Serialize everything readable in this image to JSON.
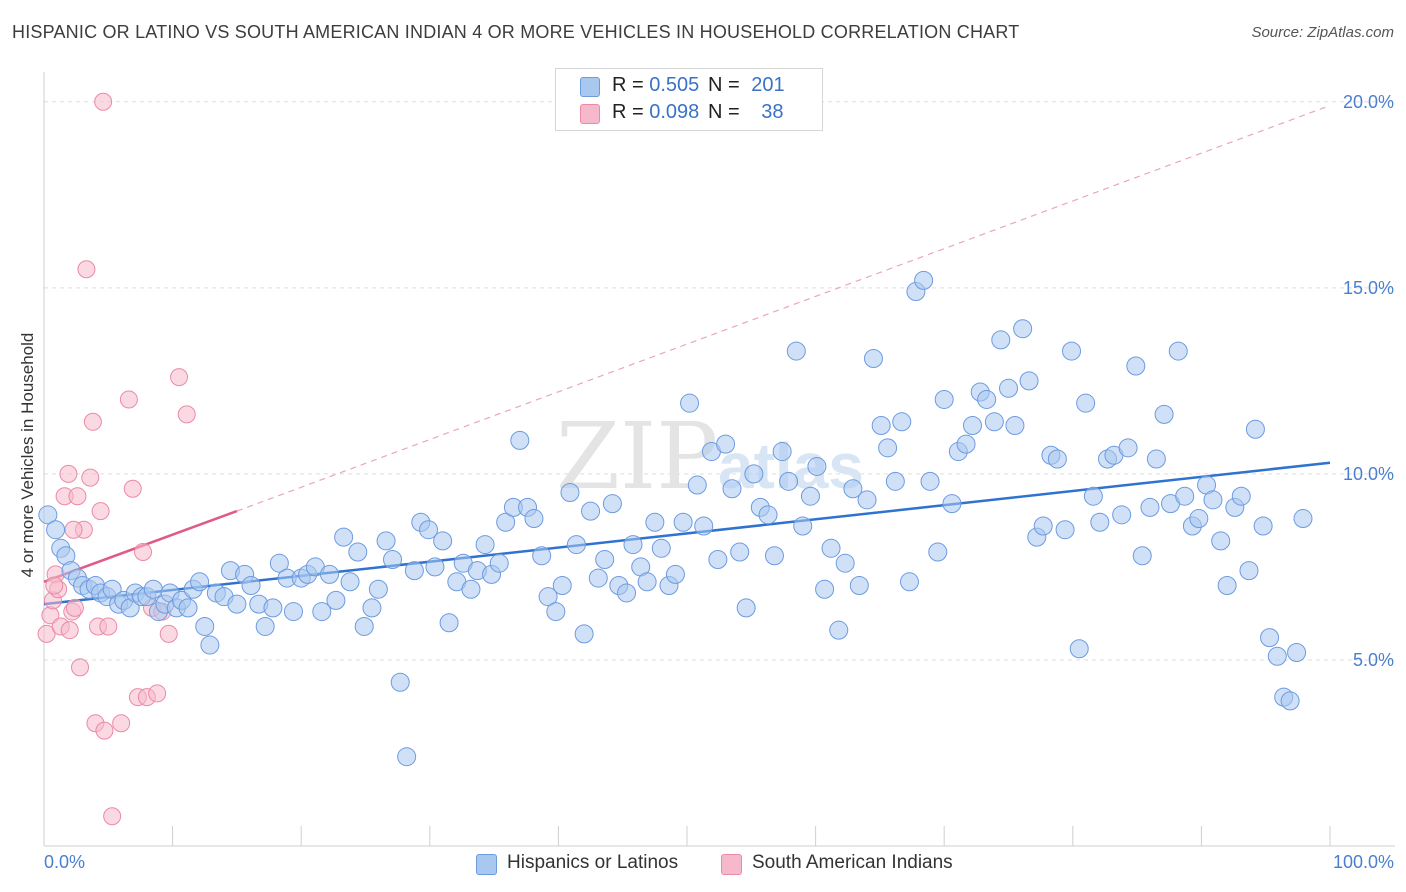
{
  "title": "HISPANIC OR LATINO VS SOUTH AMERICAN INDIAN 4 OR MORE VEHICLES IN HOUSEHOLD CORRELATION CHART",
  "source": "Source: ZipAtlas.com",
  "colors": {
    "blue_fill": "#a9c8f0",
    "blue_stroke": "#6d9be0",
    "blue_line": "#2f72d0",
    "pink_fill": "#f6b9cb",
    "pink_stroke": "#eb8aa8",
    "pink_line": "#e05a88",
    "tick_text": "#4a7fcf",
    "grid": "#dddddd"
  },
  "legend": {
    "rows": [
      {
        "r_label": "R = ",
        "r_value": "0.505",
        "n_label": "N = ",
        "n_value": "201"
      },
      {
        "r_label": "R = ",
        "r_value": "0.098",
        "n_label": "N = ",
        "n_value": "38"
      }
    ]
  },
  "bottom_legend": {
    "items": [
      "Hispanics or Latinos",
      "South American Indians"
    ]
  },
  "chart_data": {
    "type": "scatter",
    "ylabel": "4 or more Vehicles in Household",
    "xlim": [
      0,
      100
    ],
    "ylim": [
      0,
      20.8
    ],
    "y_ticks": [
      5,
      10,
      15,
      20
    ],
    "y_tick_labels": [
      "5.0%",
      "10.0%",
      "15.0%",
      "20.0%"
    ],
    "x_tick_labels": [
      "0.0%",
      "100.0%"
    ],
    "grid": "horizontal dashed",
    "watermark": "ZIPatlas",
    "series": [
      {
        "name": "Hispanics or Latinos",
        "trend": {
          "x0": 0,
          "y0": 6.5,
          "x1": 100,
          "y1": 10.3
        },
        "points": [
          [
            0.3,
            8.9
          ],
          [
            0.9,
            8.5
          ],
          [
            1.3,
            8.0
          ],
          [
            1.7,
            7.8
          ],
          [
            2.1,
            7.4
          ],
          [
            2.6,
            7.2
          ],
          [
            3.0,
            7.0
          ],
          [
            3.5,
            6.9
          ],
          [
            4.0,
            7.0
          ],
          [
            4.4,
            6.8
          ],
          [
            4.9,
            6.7
          ],
          [
            5.3,
            6.9
          ],
          [
            5.8,
            6.5
          ],
          [
            6.2,
            6.6
          ],
          [
            6.7,
            6.4
          ],
          [
            7.1,
            6.8
          ],
          [
            7.6,
            6.7
          ],
          [
            8.0,
            6.7
          ],
          [
            8.5,
            6.9
          ],
          [
            8.9,
            6.3
          ],
          [
            9.4,
            6.5
          ],
          [
            9.8,
            6.8
          ],
          [
            10.3,
            6.4
          ],
          [
            10.7,
            6.6
          ],
          [
            11.2,
            6.4
          ],
          [
            11.6,
            6.9
          ],
          [
            12.1,
            7.1
          ],
          [
            12.5,
            5.9
          ],
          [
            12.9,
            5.4
          ],
          [
            13.4,
            6.8
          ],
          [
            14.0,
            6.7
          ],
          [
            14.5,
            7.4
          ],
          [
            15.0,
            6.5
          ],
          [
            15.6,
            7.3
          ],
          [
            16.1,
            7.0
          ],
          [
            16.7,
            6.5
          ],
          [
            17.2,
            5.9
          ],
          [
            17.8,
            6.4
          ],
          [
            18.3,
            7.6
          ],
          [
            18.9,
            7.2
          ],
          [
            19.4,
            6.3
          ],
          [
            20.0,
            7.2
          ],
          [
            20.5,
            7.3
          ],
          [
            21.1,
            7.5
          ],
          [
            21.6,
            6.3
          ],
          [
            22.2,
            7.3
          ],
          [
            22.7,
            6.6
          ],
          [
            23.3,
            8.3
          ],
          [
            23.8,
            7.1
          ],
          [
            24.4,
            7.9
          ],
          [
            24.9,
            5.9
          ],
          [
            25.5,
            6.4
          ],
          [
            26.0,
            6.9
          ],
          [
            26.6,
            8.2
          ],
          [
            27.1,
            7.7
          ],
          [
            27.7,
            4.4
          ],
          [
            28.2,
            2.4
          ],
          [
            28.8,
            7.4
          ],
          [
            29.3,
            8.7
          ],
          [
            29.9,
            8.5
          ],
          [
            30.4,
            7.5
          ],
          [
            31.0,
            8.2
          ],
          [
            31.5,
            6.0
          ],
          [
            32.1,
            7.1
          ],
          [
            32.6,
            7.6
          ],
          [
            33.2,
            6.9
          ],
          [
            33.7,
            7.4
          ],
          [
            34.3,
            8.1
          ],
          [
            34.8,
            7.3
          ],
          [
            35.4,
            7.6
          ],
          [
            35.9,
            8.7
          ],
          [
            36.5,
            9.1
          ],
          [
            37.0,
            10.9
          ],
          [
            37.6,
            9.1
          ],
          [
            38.1,
            8.8
          ],
          [
            38.7,
            7.8
          ],
          [
            39.2,
            6.7
          ],
          [
            39.8,
            6.3
          ],
          [
            40.3,
            7.0
          ],
          [
            40.9,
            9.5
          ],
          [
            41.4,
            8.1
          ],
          [
            42.0,
            5.7
          ],
          [
            42.5,
            9.0
          ],
          [
            43.1,
            7.2
          ],
          [
            43.6,
            7.7
          ],
          [
            44.2,
            9.2
          ],
          [
            44.7,
            7.0
          ],
          [
            45.3,
            6.8
          ],
          [
            45.8,
            8.1
          ],
          [
            46.4,
            7.5
          ],
          [
            46.9,
            7.1
          ],
          [
            47.5,
            8.7
          ],
          [
            48.0,
            8.0
          ],
          [
            48.6,
            7.0
          ],
          [
            49.1,
            7.3
          ],
          [
            49.7,
            8.7
          ],
          [
            50.2,
            11.9
          ],
          [
            50.8,
            9.7
          ],
          [
            51.3,
            8.6
          ],
          [
            51.9,
            10.6
          ],
          [
            52.4,
            7.7
          ],
          [
            53.0,
            10.8
          ],
          [
            53.5,
            9.6
          ],
          [
            54.1,
            7.9
          ],
          [
            54.6,
            6.4
          ],
          [
            55.2,
            10.0
          ],
          [
            55.7,
            9.1
          ],
          [
            56.3,
            8.9
          ],
          [
            56.8,
            7.8
          ],
          [
            57.4,
            10.6
          ],
          [
            57.9,
            9.8
          ],
          [
            58.5,
            13.3
          ],
          [
            59.0,
            8.6
          ],
          [
            59.6,
            9.4
          ],
          [
            60.1,
            10.2
          ],
          [
            60.7,
            6.9
          ],
          [
            61.2,
            8.0
          ],
          [
            61.8,
            5.8
          ],
          [
            62.3,
            7.6
          ],
          [
            62.9,
            9.6
          ],
          [
            63.4,
            7.0
          ],
          [
            64.0,
            9.3
          ],
          [
            64.5,
            13.1
          ],
          [
            65.1,
            11.3
          ],
          [
            65.6,
            10.7
          ],
          [
            66.2,
            9.8
          ],
          [
            66.7,
            11.4
          ],
          [
            67.3,
            7.1
          ],
          [
            67.8,
            14.9
          ],
          [
            68.4,
            15.2
          ],
          [
            68.9,
            9.8
          ],
          [
            69.5,
            7.9
          ],
          [
            70.0,
            12.0
          ],
          [
            70.6,
            9.2
          ],
          [
            71.1,
            10.6
          ],
          [
            71.7,
            10.8
          ],
          [
            72.2,
            11.3
          ],
          [
            72.8,
            12.2
          ],
          [
            73.3,
            12.0
          ],
          [
            73.9,
            11.4
          ],
          [
            74.4,
            13.6
          ],
          [
            75.0,
            12.3
          ],
          [
            75.5,
            11.3
          ],
          [
            76.1,
            13.9
          ],
          [
            76.6,
            12.5
          ],
          [
            77.2,
            8.3
          ],
          [
            77.7,
            8.6
          ],
          [
            78.3,
            10.5
          ],
          [
            78.8,
            10.4
          ],
          [
            79.4,
            8.5
          ],
          [
            79.9,
            13.3
          ],
          [
            80.5,
            5.3
          ],
          [
            81.0,
            11.9
          ],
          [
            81.6,
            9.4
          ],
          [
            82.1,
            8.7
          ],
          [
            82.7,
            10.4
          ],
          [
            83.2,
            10.5
          ],
          [
            83.8,
            8.9
          ],
          [
            84.3,
            10.7
          ],
          [
            84.9,
            12.9
          ],
          [
            85.4,
            7.8
          ],
          [
            86.0,
            9.1
          ],
          [
            86.5,
            10.4
          ],
          [
            87.1,
            11.6
          ],
          [
            87.6,
            9.2
          ],
          [
            88.2,
            13.3
          ],
          [
            88.7,
            9.4
          ],
          [
            89.3,
            8.6
          ],
          [
            89.8,
            8.8
          ],
          [
            90.4,
            9.7
          ],
          [
            90.9,
            9.3
          ],
          [
            91.5,
            8.2
          ],
          [
            92.0,
            7.0
          ],
          [
            92.6,
            9.1
          ],
          [
            93.1,
            9.4
          ],
          [
            93.7,
            7.4
          ],
          [
            94.2,
            11.2
          ],
          [
            94.8,
            8.6
          ],
          [
            95.3,
            5.6
          ],
          [
            95.9,
            5.1
          ],
          [
            96.4,
            4.0
          ],
          [
            96.9,
            3.9
          ],
          [
            97.4,
            5.2
          ],
          [
            97.9,
            8.8
          ]
        ]
      },
      {
        "name": "South American Indians",
        "trend": {
          "x0": 0,
          "y0": 7.1,
          "x1": 15,
          "y1": 9.0
        },
        "trend_extension": {
          "x0": 15,
          "y0": 9.0,
          "x1": 100,
          "y1": 19.9
        },
        "points": [
          [
            0.2,
            5.7
          ],
          [
            0.5,
            6.2
          ],
          [
            0.7,
            6.6
          ],
          [
            0.9,
            7.3
          ],
          [
            1.1,
            6.9
          ],
          [
            1.3,
            5.9
          ],
          [
            1.6,
            9.4
          ],
          [
            1.9,
            10.0
          ],
          [
            2.0,
            5.8
          ],
          [
            2.2,
            6.3
          ],
          [
            2.4,
            6.4
          ],
          [
            2.6,
            9.4
          ],
          [
            2.8,
            4.8
          ],
          [
            3.1,
            8.5
          ],
          [
            3.3,
            15.5
          ],
          [
            3.6,
            9.9
          ],
          [
            3.8,
            11.4
          ],
          [
            4.0,
            3.3
          ],
          [
            4.2,
            5.9
          ],
          [
            4.4,
            9.0
          ],
          [
            4.7,
            3.1
          ],
          [
            5.0,
            5.9
          ],
          [
            5.3,
            0.8
          ],
          [
            6.0,
            3.3
          ],
          [
            6.6,
            12.0
          ],
          [
            6.9,
            9.6
          ],
          [
            7.3,
            4.0
          ],
          [
            7.7,
            7.9
          ],
          [
            8.0,
            4.0
          ],
          [
            8.4,
            6.4
          ],
          [
            8.8,
            4.1
          ],
          [
            9.2,
            6.3
          ],
          [
            9.7,
            5.7
          ],
          [
            10.5,
            12.6
          ],
          [
            11.1,
            11.6
          ],
          [
            4.6,
            20.0
          ],
          [
            0.8,
            7.0
          ],
          [
            2.3,
            8.5
          ]
        ]
      }
    ]
  }
}
